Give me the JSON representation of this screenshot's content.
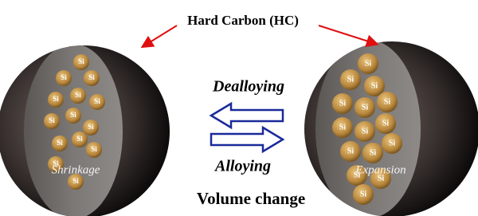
{
  "title": "Hard Carbon (HC)",
  "top_arrow_label": "Dealloying",
  "bottom_arrow_label": "Alloying",
  "left_sphere_label": "Shrinkage",
  "right_sphere_label": "Expansion",
  "particle_label": "Si",
  "caption": "Volume change"
}
